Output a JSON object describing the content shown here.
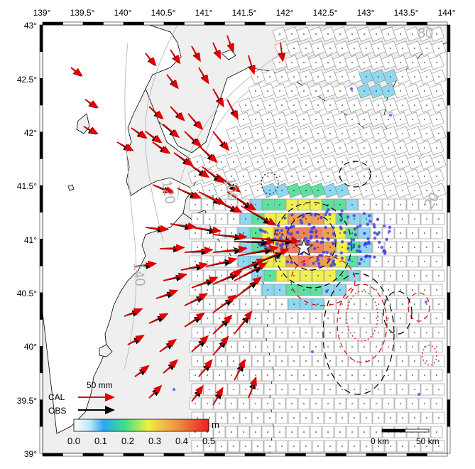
{
  "map": {
    "lon_ticks": [
      "139°",
      "139.5°",
      "140°",
      "140.5°",
      "141°",
      "141.5°",
      "142°",
      "142.5°",
      "143°",
      "143.5°",
      "144°"
    ],
    "lat_ticks": [
      "43°",
      "42.5°",
      "42°",
      "41.5°",
      "41°",
      "40.5°",
      "40°",
      "39.5°",
      "39°"
    ],
    "lon_range": [
      139,
      144
    ],
    "lat_range": [
      39,
      43
    ],
    "contour_labels": [
      "80",
      "100",
      "120",
      "140",
      "20"
    ]
  },
  "legend": {
    "scale_value": "50  mm",
    "cal_label": "CAL",
    "obs_label": "OBS",
    "cal_color": "#e00000",
    "obs_color": "#000000"
  },
  "colorbar": {
    "unit": "m",
    "ticks": [
      "0.0",
      "0.1",
      "0.2",
      "0.3",
      "0.4",
      "0.5"
    ],
    "colors": [
      "#ffffff",
      "#2aa8f0",
      "#3de08a",
      "#f0f040",
      "#f08a40",
      "#e82020"
    ]
  },
  "scalebar": {
    "start_label": "0 km",
    "end_label": "50 km"
  },
  "colors": {
    "land": "#efefef",
    "coast": "#000000",
    "fault_grid": "#888888",
    "hypocenter": "#3a3ae8"
  }
}
